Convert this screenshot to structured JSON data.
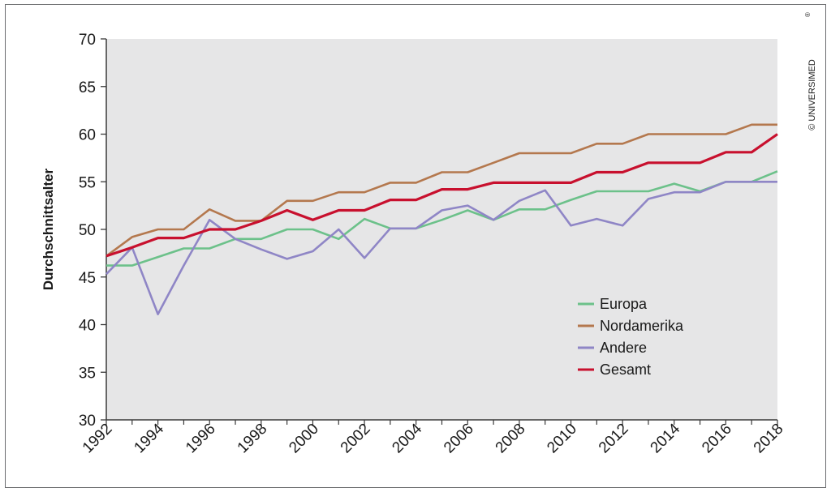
{
  "chart_data": {
    "type": "line",
    "ylabel": "Durchschnittsalter",
    "xlabel": "",
    "ylim": [
      30,
      70
    ],
    "yticks": [
      30,
      35,
      40,
      45,
      50,
      55,
      60,
      65,
      70
    ],
    "xlim": [
      1992,
      2018
    ],
    "xticks": [
      1992,
      1994,
      1996,
      1998,
      2000,
      2002,
      2004,
      2006,
      2008,
      2010,
      2012,
      2014,
      2016,
      2018
    ],
    "x": [
      1992,
      1993,
      1994,
      1995,
      1996,
      1997,
      1998,
      1999,
      2000,
      2001,
      2002,
      2003,
      2004,
      2005,
      2006,
      2007,
      2008,
      2009,
      2010,
      2011,
      2012,
      2013,
      2014,
      2015,
      2016,
      2017,
      2018
    ],
    "grid": false,
    "legend_position": "lower-right",
    "series": [
      {
        "name": "Europa",
        "color": "#6cc18a",
        "values": [
          46.2,
          46.2,
          47.1,
          48.0,
          48.0,
          49.0,
          49.0,
          50.0,
          50.0,
          49.0,
          51.1,
          50.1,
          50.1,
          51.0,
          52.0,
          51.0,
          52.1,
          52.1,
          53.1,
          54.0,
          54.0,
          54.0,
          54.8,
          54.0,
          55.0,
          55.0,
          56.1
        ]
      },
      {
        "name": "Nordamerika",
        "color": "#b4784e",
        "values": [
          47.2,
          49.2,
          50.0,
          50.0,
          52.1,
          50.9,
          50.9,
          53.0,
          53.0,
          53.9,
          53.9,
          54.9,
          54.9,
          56.0,
          56.0,
          57.0,
          58.0,
          58.0,
          58.0,
          59.0,
          59.0,
          60.0,
          60.0,
          60.0,
          60.0,
          61.0,
          61.0
        ]
      },
      {
        "name": "Andere",
        "color": "#8f86c6",
        "values": [
          45.3,
          48.1,
          41.1,
          46.2,
          51.0,
          49.0,
          47.9,
          46.9,
          47.7,
          50.0,
          47.0,
          50.1,
          50.1,
          52.0,
          52.5,
          51.0,
          53.0,
          54.1,
          50.4,
          51.1,
          50.4,
          53.2,
          53.9,
          53.9,
          55.0,
          55.0,
          55.0
        ]
      },
      {
        "name": "Gesamt",
        "color": "#c8102e",
        "values": [
          47.2,
          48.1,
          49.1,
          49.1,
          50.0,
          50.0,
          50.9,
          52.0,
          51.0,
          52.0,
          52.0,
          53.1,
          53.1,
          54.2,
          54.2,
          54.9,
          54.9,
          54.9,
          54.9,
          56.0,
          56.0,
          57.0,
          57.0,
          57.0,
          58.1,
          58.1,
          60.0
        ]
      }
    ]
  },
  "copyright": "© UNIVERSIMED",
  "copyright_mark": "®",
  "colors": {
    "plot_background": "#e6e6e7",
    "axis": "#3a3a3a",
    "frame": "#6d6e71"
  }
}
